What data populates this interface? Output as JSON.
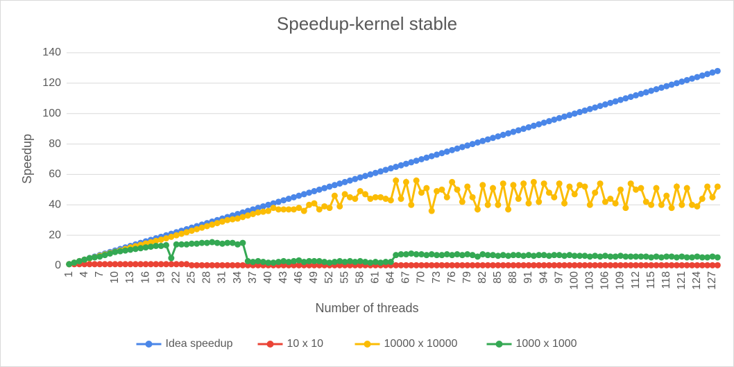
{
  "chart_data": {
    "type": "line",
    "title": "Speedup-kernel stable",
    "x_label": "Number of threads",
    "y_label": "Speedup",
    "categories": [
      1,
      null,
      null,
      4,
      null,
      null,
      7,
      null,
      null,
      10,
      null,
      null,
      13,
      null,
      null,
      16,
      null,
      null,
      19,
      null,
      null,
      22,
      null,
      null,
      25,
      null,
      null,
      28,
      null,
      null,
      31,
      null,
      null,
      34,
      null,
      null,
      37,
      null,
      null,
      40,
      null,
      null,
      43,
      null,
      null,
      46,
      null,
      null,
      49,
      null,
      null,
      52,
      null,
      null,
      55,
      null,
      null,
      58,
      null,
      null,
      61,
      null,
      null,
      64,
      null,
      null,
      67,
      null,
      null,
      70,
      null,
      null,
      73,
      null,
      null,
      76,
      null,
      null,
      79,
      null,
      null,
      82,
      null,
      null,
      85,
      null,
      null,
      88,
      null,
      null,
      91,
      null,
      null,
      94,
      null,
      null,
      97,
      null,
      null,
      100,
      null,
      null,
      103,
      null,
      null,
      106,
      null,
      null,
      109,
      null,
      null,
      112,
      null,
      null,
      115,
      null,
      null,
      118,
      null,
      null,
      121,
      null,
      null,
      124,
      null,
      null,
      127,
      null
    ],
    "ylim": [
      0,
      140
    ],
    "yticks": [
      0,
      20,
      40,
      60,
      80,
      100,
      120,
      140
    ],
    "grid": true,
    "legend": "bottom",
    "series": [
      {
        "name": "Idea speedup",
        "color": "#4a86e8",
        "values": [
          1,
          2,
          3,
          4,
          5,
          6,
          7,
          8,
          9,
          10,
          11,
          12,
          13,
          14,
          15,
          16,
          17,
          18,
          19,
          20,
          21,
          22,
          23,
          24,
          25,
          26,
          27,
          28,
          29,
          30,
          31,
          32,
          33,
          34,
          35,
          36,
          37,
          38,
          39,
          40,
          41,
          42,
          43,
          44,
          45,
          46,
          47,
          48,
          49,
          50,
          51,
          52,
          53,
          54,
          55,
          56,
          57,
          58,
          59,
          60,
          61,
          62,
          63,
          64,
          65,
          66,
          67,
          68,
          69,
          70,
          71,
          72,
          73,
          74,
          75,
          76,
          77,
          78,
          79,
          80,
          81,
          82,
          83,
          84,
          85,
          86,
          87,
          88,
          89,
          90,
          91,
          92,
          93,
          94,
          95,
          96,
          97,
          98,
          99,
          100,
          101,
          102,
          103,
          104,
          105,
          106,
          107,
          108,
          109,
          110,
          111,
          112,
          113,
          114,
          115,
          116,
          117,
          118,
          119,
          120,
          121,
          122,
          123,
          124,
          125,
          126,
          127,
          128
        ]
      },
      {
        "name": "10 x 10",
        "color": "#ea4335",
        "values": [
          1,
          1,
          1,
          1,
          1,
          1,
          1,
          1,
          1,
          1,
          1,
          1,
          1,
          1,
          1,
          1,
          1,
          1,
          1,
          1,
          1,
          1,
          1,
          1,
          0.3,
          0.3,
          0.3,
          0.3,
          0.3,
          0.3,
          0.3,
          0.3,
          0.3,
          0.3,
          0.3,
          0.3,
          0.3,
          0.3,
          0.3,
          0.3,
          0.3,
          0.3,
          0.3,
          0.3,
          0.3,
          0.3,
          0.3,
          0.3,
          0.3,
          0.3,
          0.3,
          0.3,
          0.3,
          0.3,
          0.3,
          0.3,
          0.3,
          0.3,
          0.3,
          0.3,
          0.3,
          0.3,
          0.3,
          0.3,
          0.3,
          0.3,
          0.3,
          0.3,
          0.3,
          0.3,
          0.3,
          0.3,
          0.3,
          0.3,
          0.3,
          0.3,
          0.3,
          0.3,
          0.3,
          0.3,
          0.3,
          0.3,
          0.3,
          0.3,
          0.3,
          0.3,
          0.3,
          0.3,
          0.3,
          0.3,
          0.3,
          0.3,
          0.3,
          0.3,
          0.3,
          0.3,
          0.3,
          0.3,
          0.3,
          0.3,
          0.3,
          0.3,
          0.3,
          0.3,
          0.3,
          0.3,
          0.3,
          0.3,
          0.3,
          0.3,
          0.3,
          0.3,
          0.3,
          0.3,
          0.3,
          0.3,
          0.3,
          0.3,
          0.3,
          0.3,
          0.3,
          0.3,
          0.3,
          0.3,
          0.3,
          0.3,
          0.3,
          0.3
        ]
      },
      {
        "name": "10000 x 10000",
        "color": "#fbbc04",
        "values": [
          1,
          2,
          3,
          4,
          4.8,
          5.6,
          6.5,
          7.4,
          8.3,
          9.2,
          10,
          11,
          12,
          12.8,
          13.7,
          14.6,
          15.4,
          16.3,
          17.1,
          18,
          19,
          20,
          21,
          22,
          23,
          24,
          25,
          26,
          27,
          28,
          29,
          30,
          30.5,
          31,
          32,
          33,
          34,
          35,
          35.5,
          36,
          38,
          37,
          37,
          37,
          37,
          38,
          36,
          40,
          41,
          37,
          39,
          38,
          46,
          39,
          47,
          45,
          44,
          49,
          47,
          44,
          45,
          45,
          44,
          43,
          56,
          44,
          55,
          40,
          56,
          48,
          51,
          36,
          49,
          50,
          45,
          55,
          50,
          42,
          52,
          45,
          37,
          53,
          40,
          51,
          40,
          54,
          37,
          53,
          44,
          54,
          41,
          55,
          42,
          54,
          48,
          45,
          54,
          41,
          52,
          47,
          53,
          52,
          40,
          48,
          54,
          42,
          44,
          41,
          50,
          38,
          54,
          50,
          51,
          42,
          40,
          51,
          40,
          46,
          38,
          52,
          40,
          51,
          40,
          39,
          44,
          52,
          45,
          52
        ]
      },
      {
        "name": "1000 x 1000",
        "color": "#34a853",
        "values": [
          1,
          2,
          3,
          4,
          5,
          5.5,
          6,
          7,
          8,
          9,
          9.5,
          10,
          10.5,
          11,
          11.5,
          12,
          12.5,
          13,
          13,
          13.5,
          5,
          14,
          14,
          14,
          14.5,
          14.5,
          15,
          15,
          15.5,
          15,
          14.5,
          15,
          15,
          14,
          15,
          3,
          2.5,
          3,
          2.5,
          2,
          2,
          2.5,
          3,
          2.5,
          3,
          3.5,
          2.5,
          3,
          3,
          3,
          2.5,
          2,
          2.5,
          3,
          2.5,
          3,
          2.5,
          3,
          2.5,
          2,
          2.5,
          2,
          2.5,
          2.5,
          7,
          7.5,
          7.5,
          8,
          7.5,
          7.5,
          7,
          7.5,
          7,
          7,
          7.5,
          7,
          7.5,
          7,
          7.5,
          7,
          6,
          7.5,
          7,
          7,
          6.5,
          7,
          6.5,
          7,
          7,
          6.5,
          7,
          6.5,
          7,
          7,
          6.5,
          7,
          7,
          6.5,
          7,
          6.5,
          6.5,
          6.5,
          6,
          6.5,
          6,
          6.5,
          6,
          6,
          6.5,
          6,
          6,
          6,
          6,
          6,
          5.5,
          6,
          5.5,
          6,
          6,
          5.5,
          6,
          5.5,
          5.5,
          6,
          5.5,
          5.5,
          6,
          5.5
        ]
      }
    ]
  }
}
